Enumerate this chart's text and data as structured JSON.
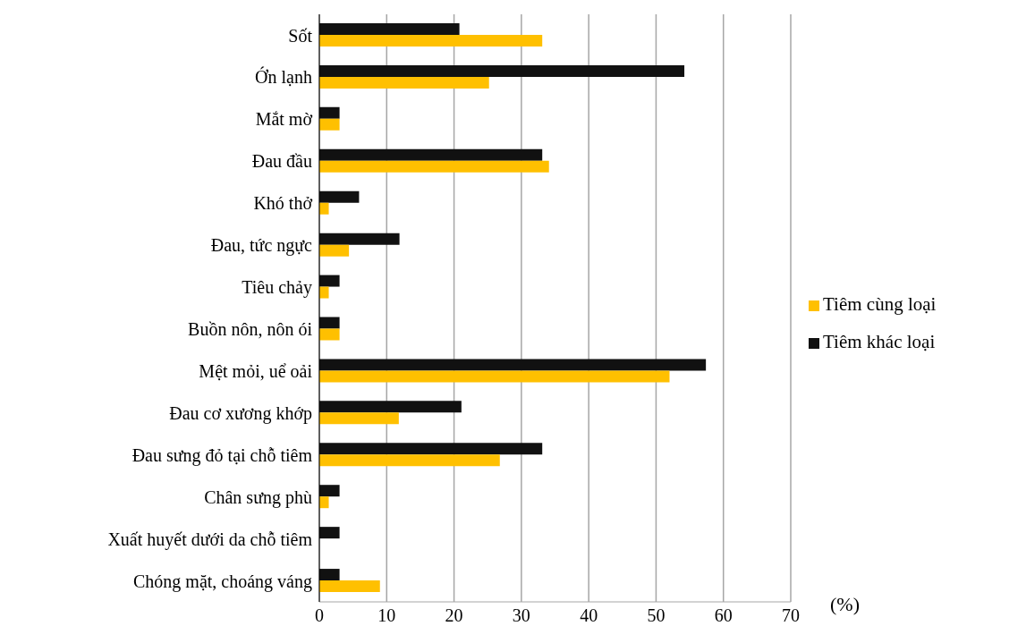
{
  "chart_data": {
    "type": "bar",
    "orientation": "horizontal",
    "xlabel": "(%)",
    "categories": [
      "Sốt",
      "Ớn lạnh",
      "Mắt mờ",
      "Đau đầu",
      "Khó thở",
      "Đau, tức ngực",
      "Tiêu chảy",
      "Buồn nôn, nôn ói",
      "Mệt mỏi, uể oải",
      "Đau cơ xương khớp",
      "Đau sưng đỏ tại chỗ tiêm",
      "Chân sưng phù",
      "Xuất huyết dưới da chỗ tiêm",
      "Chóng mặt, choáng váng"
    ],
    "series": [
      {
        "name": "Tiêm khác loại",
        "color": "#111111",
        "values": [
          20.8,
          54.2,
          3,
          33.1,
          5.9,
          11.9,
          3,
          3,
          57.4,
          21.1,
          33.1,
          3,
          3,
          3
        ]
      },
      {
        "name": "Tiêm cùng loại",
        "color": "#ffc000",
        "values": [
          33.1,
          25.2,
          3,
          34.1,
          1.4,
          4.4,
          1.4,
          3,
          52,
          11.8,
          26.8,
          1.4,
          null,
          9
        ]
      }
    ],
    "xlim": [
      0,
      70
    ],
    "xticks": [
      0,
      10,
      20,
      30,
      40,
      50,
      60,
      70
    ],
    "grid": "x",
    "legend": "right"
  }
}
